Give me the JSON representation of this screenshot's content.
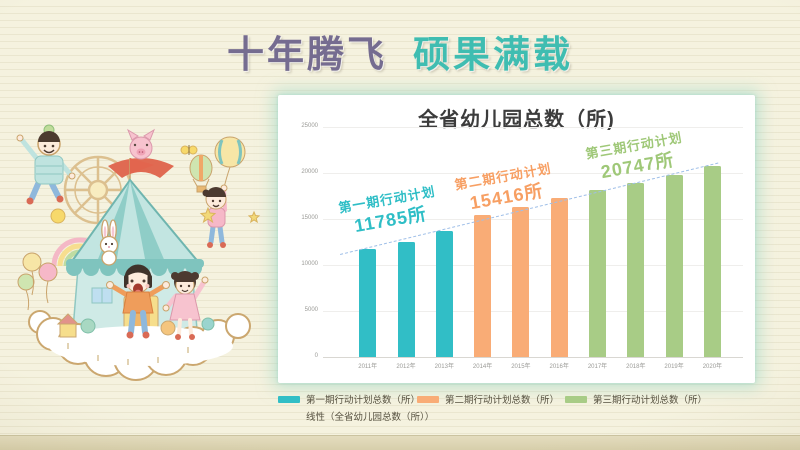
{
  "slide": {
    "title": {
      "part1": "十年腾飞",
      "part2": "硕果满载"
    },
    "title_colors": {
      "part1": "#756C90",
      "part2": "#3FBDB1"
    },
    "background_color": "#F5F2DF"
  },
  "chart_data": {
    "type": "bar",
    "title": "全省幼儿园总数（所)",
    "categories": [
      "2011年",
      "2012年",
      "2013年",
      "2014年",
      "2015年",
      "2016年",
      "2017年",
      "2018年",
      "2019年",
      "2020年"
    ],
    "values": [
      11785,
      12500,
      13700,
      15416,
      16300,
      17250,
      18100,
      18950,
      19800,
      20747
    ],
    "bar_colors": [
      "#31BEC6",
      "#31BEC6",
      "#31BEC6",
      "#F9AC76",
      "#F9AC76",
      "#F9AC76",
      "#A8CC86",
      "#A8CC86",
      "#A8CC86",
      "#A8CC86"
    ],
    "ylim": [
      0,
      25000
    ],
    "yticks": [
      0,
      5000,
      10000,
      15000,
      20000,
      25000
    ],
    "grid": true,
    "legend_position": "bottom",
    "annotations": [
      {
        "label": "第一期行动计划",
        "value_label": "11785所",
        "color": "#2FBEC6"
      },
      {
        "label": "第二期行动计划",
        "value_label": "15416所",
        "color": "#F79F63"
      },
      {
        "label": "第三期行动计划",
        "value_label": "20747所",
        "color": "#9FC878"
      }
    ],
    "trendline": {
      "style": "dashed",
      "color": "#9FBFE8"
    },
    "legend": [
      {
        "label": "第一期行动计划总数（所）",
        "color": "#31BEC6"
      },
      {
        "label": "第二期行动计划总数（所）",
        "color": "#F9AC76"
      },
      {
        "label": "第三期行动计划总数（所）",
        "color": "#A8CC86"
      }
    ],
    "trendline_legend": "线性（全省幼儿园总数（所））"
  }
}
